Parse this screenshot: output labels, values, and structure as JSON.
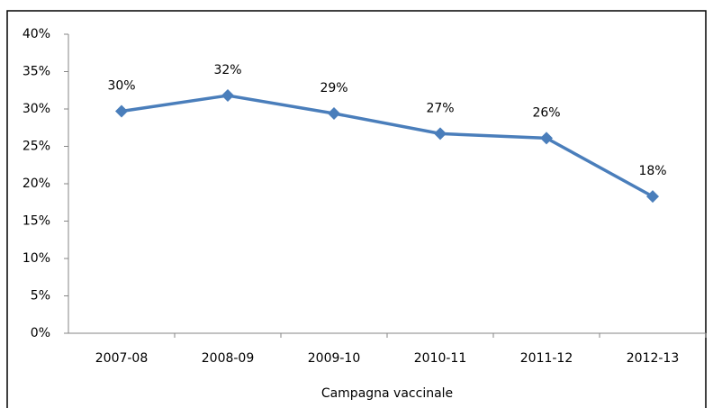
{
  "chart_data": {
    "type": "line",
    "x_label": "Campagna vaccinale",
    "categories": [
      "2007-08",
      "2008-09",
      "2009-10",
      "2010-11",
      "2011-12",
      "2012-13"
    ],
    "series": [
      {
        "name": null,
        "color": "#4a7ebb",
        "values": [
          29.7,
          31.8,
          29.4,
          26.7,
          26.1,
          18.3
        ],
        "value_labels": [
          "30%",
          "32%",
          "29%",
          "27%",
          "26%",
          "18%"
        ]
      }
    ],
    "ylim": [
      0,
      40
    ],
    "yticks": [
      {
        "value": 0,
        "label": "0%"
      },
      {
        "value": 5,
        "label": "5%"
      },
      {
        "value": 10,
        "label": "10%"
      },
      {
        "value": 15,
        "label": "15%"
      },
      {
        "value": 20,
        "label": "20%"
      },
      {
        "value": 25,
        "label": "25%"
      },
      {
        "value": 30,
        "label": "30%"
      },
      {
        "value": 35,
        "label": "35%"
      },
      {
        "value": 40,
        "label": "40%"
      }
    ],
    "grid": false
  }
}
